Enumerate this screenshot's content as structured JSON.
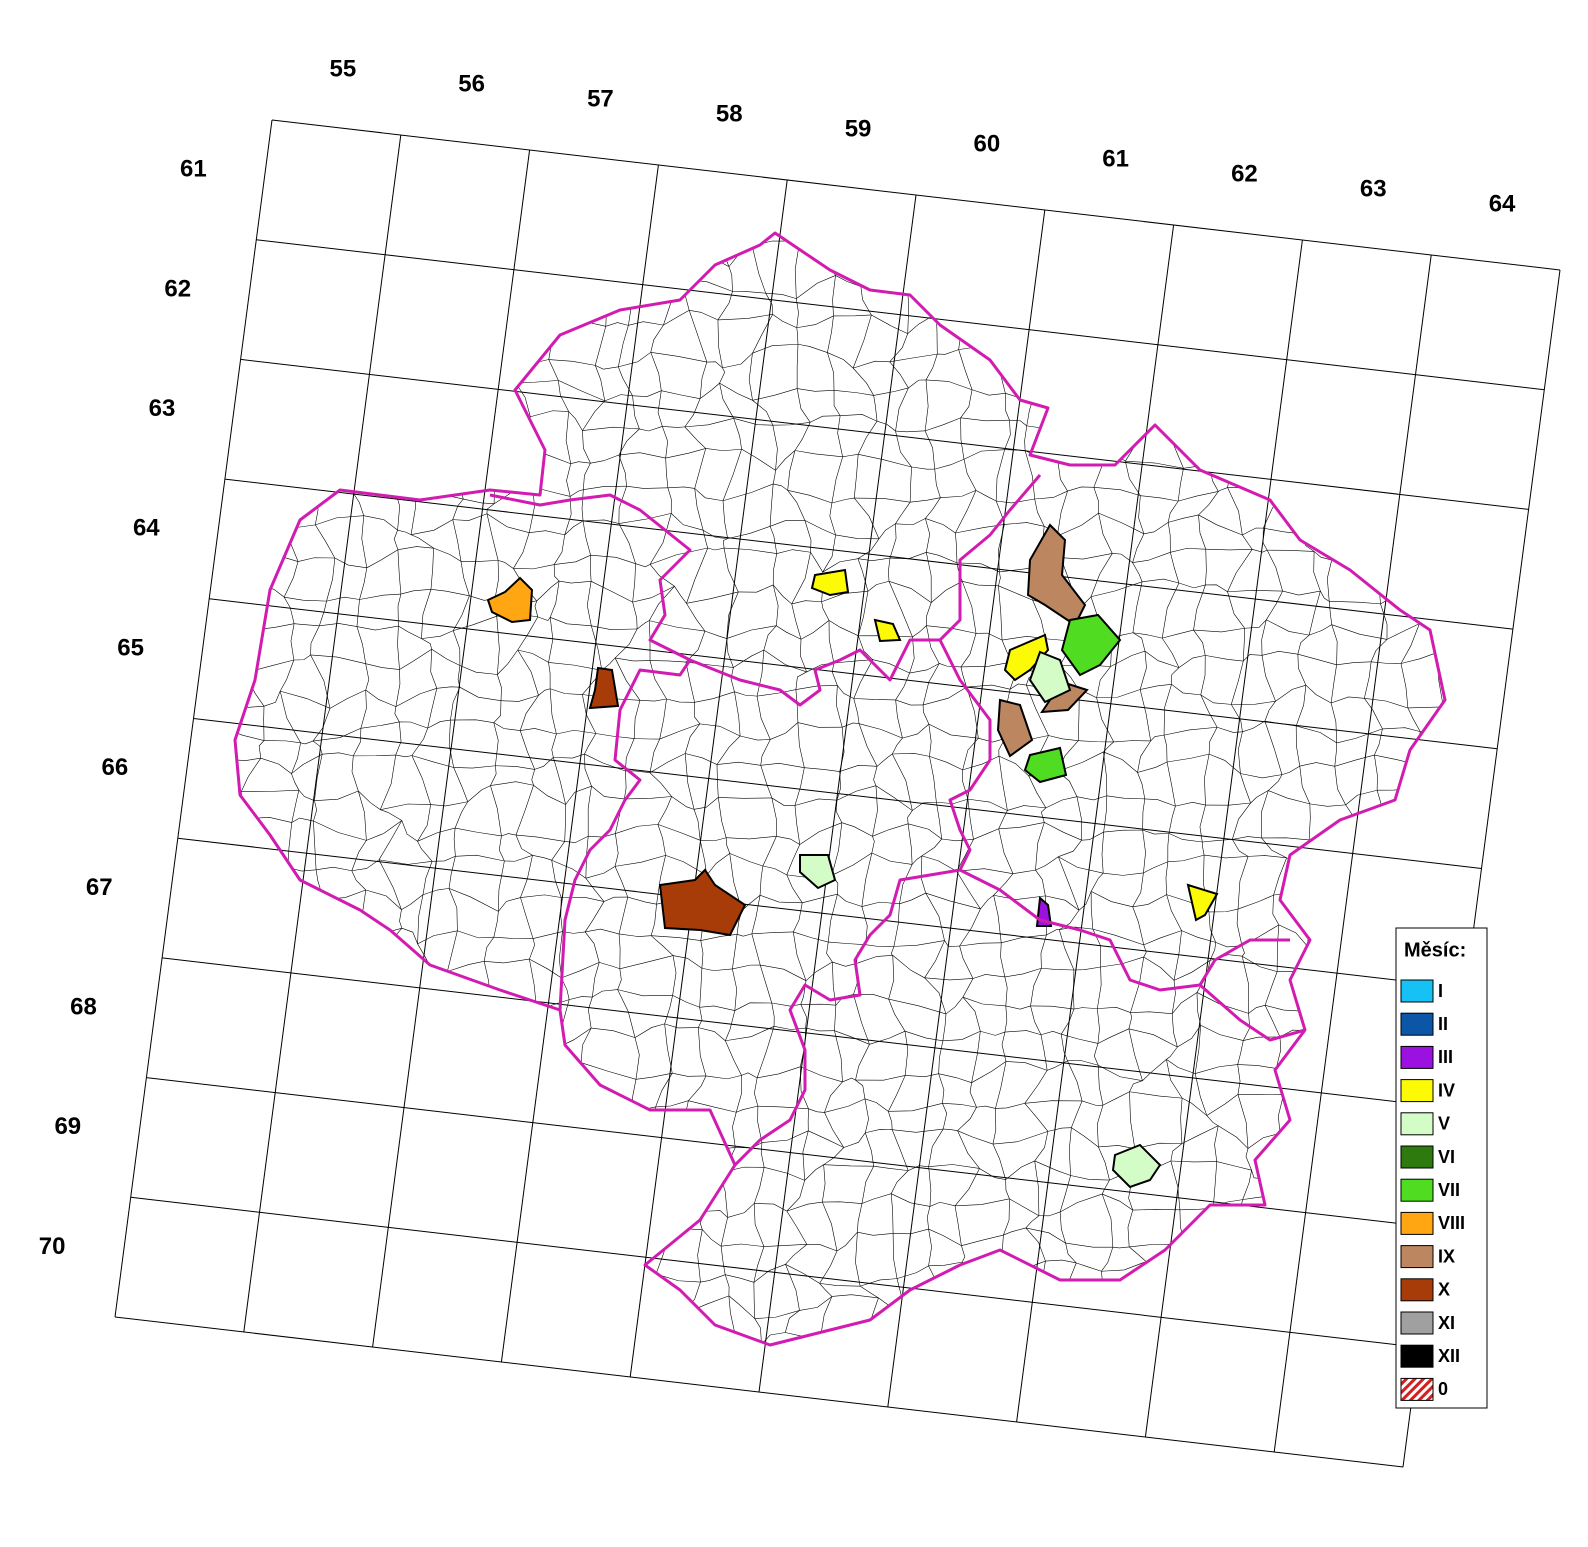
{
  "grid": {
    "columns": [
      "55",
      "56",
      "57",
      "58",
      "59",
      "60",
      "61",
      "62",
      "63",
      "64"
    ],
    "rows": [
      "61",
      "62",
      "63",
      "64",
      "65",
      "66",
      "67",
      "68",
      "69",
      "70"
    ]
  },
  "legend": {
    "title": "Měsíc:",
    "items": [
      {
        "label": "I",
        "color": "#16c1f5"
      },
      {
        "label": "II",
        "color": "#0c56a8"
      },
      {
        "label": "III",
        "color": "#9b12e0"
      },
      {
        "label": "IV",
        "color": "#fdfa05"
      },
      {
        "label": "V",
        "color": "#d4fcc6"
      },
      {
        "label": "VI",
        "color": "#2f7a0f"
      },
      {
        "label": "VII",
        "color": "#4fdc21"
      },
      {
        "label": "VIII",
        "color": "#ffa612"
      },
      {
        "label": "IX",
        "color": "#bb8660"
      },
      {
        "label": "X",
        "color": "#a83c08"
      },
      {
        "label": "XI",
        "color": "#a0a0a0"
      },
      {
        "label": "XII",
        "color": "#000000"
      },
      {
        "label": "0",
        "color": "#d42020",
        "pattern": "hatch"
      }
    ]
  }
}
